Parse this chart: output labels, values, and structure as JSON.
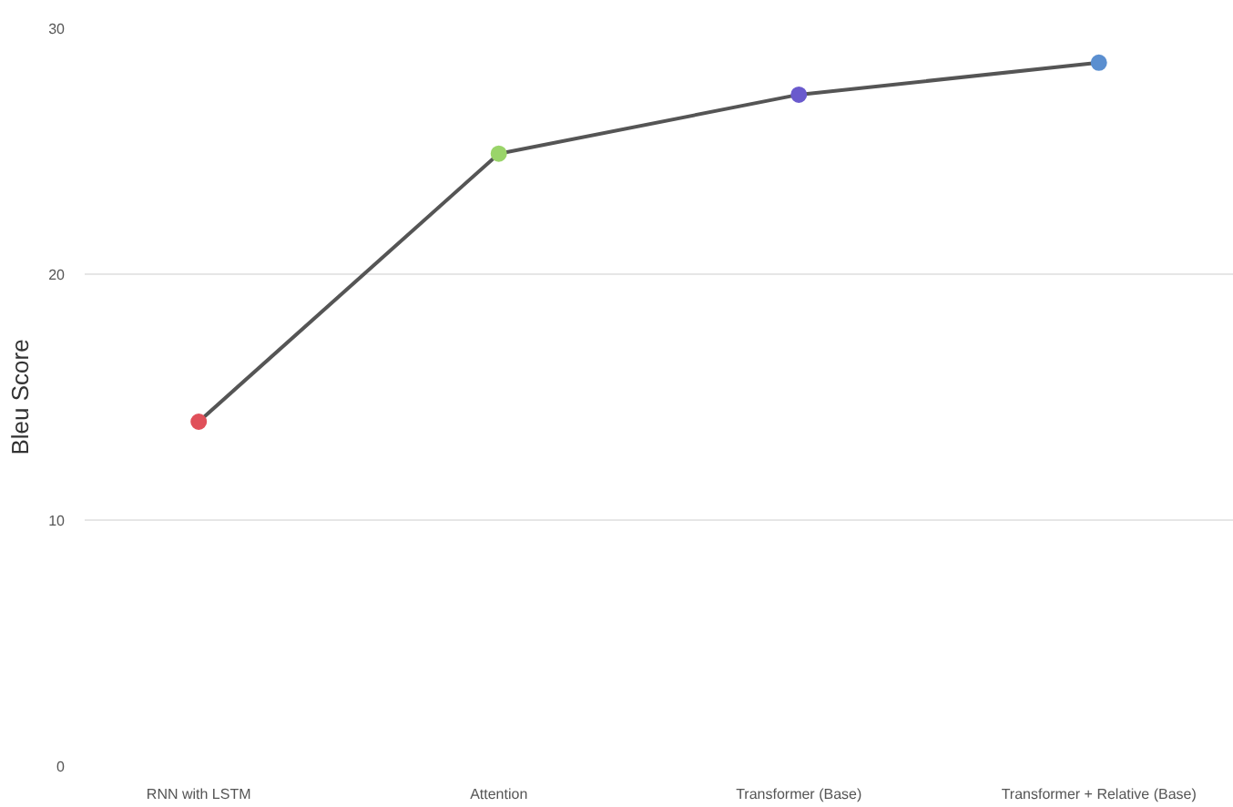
{
  "chart_data": {
    "type": "line",
    "ylabel": "Bleu Score",
    "categories": [
      "RNN with LSTM",
      "Attention",
      "Transformer (Base)",
      "Transformer + Relative (Base)"
    ],
    "series": [
      {
        "color": "#555555",
        "colors": [
          "#e0505a",
          "#9ad46a",
          "#6a5acd",
          "#5b8fd0"
        ],
        "values": [
          14.0,
          24.9,
          27.3,
          28.6
        ]
      }
    ],
    "ylim": [
      0,
      30
    ],
    "yticks": [
      0,
      10,
      20,
      30
    ],
    "grid": "y",
    "marker": "circle",
    "line_style": "solid"
  }
}
